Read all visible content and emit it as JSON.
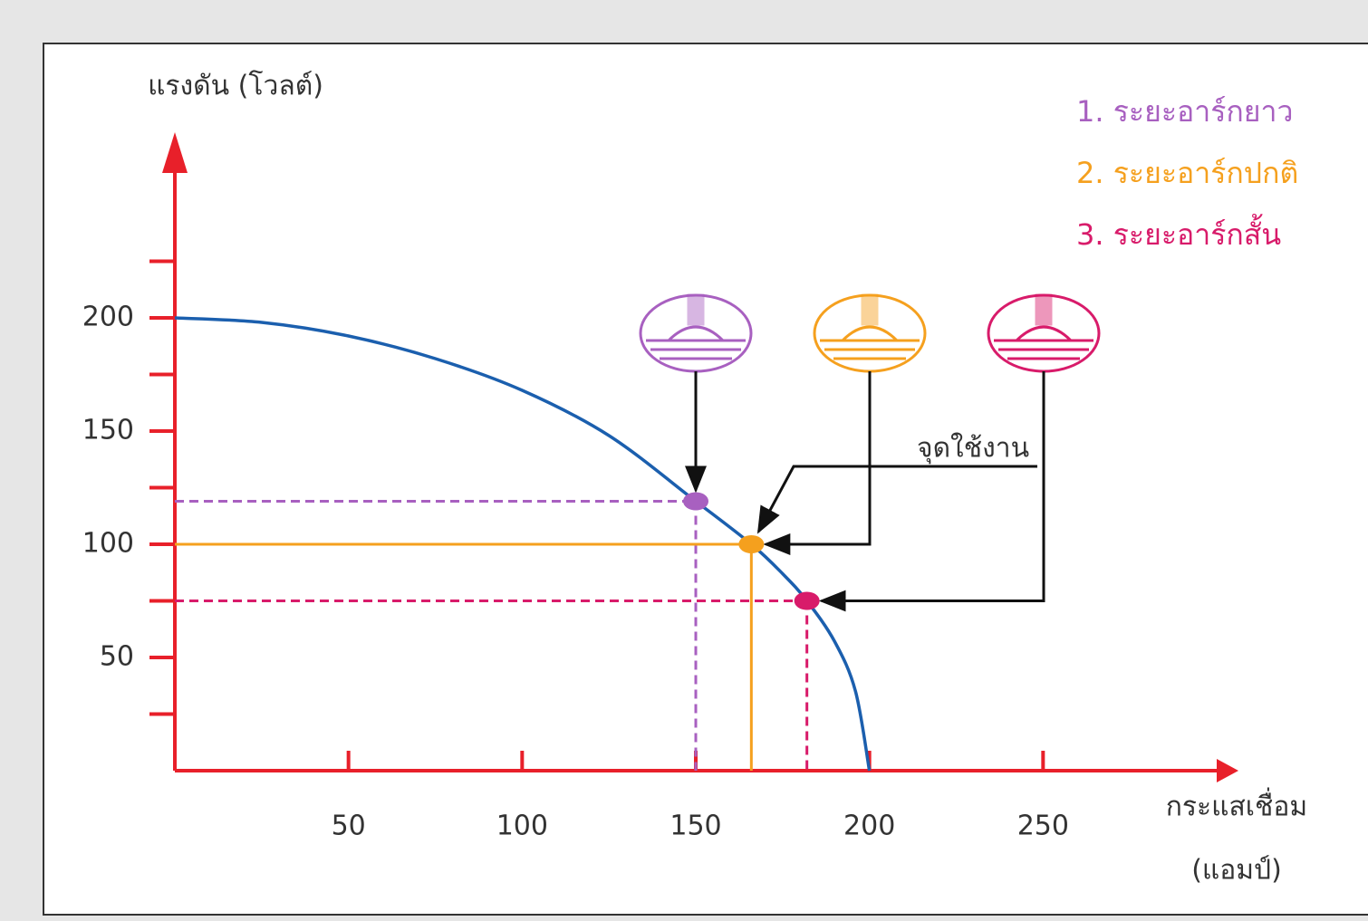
{
  "chart_data": {
    "type": "line",
    "y_label": "แรงดัน (โวลต์)",
    "x_label": "กระแสเชื่อม",
    "x_unit": "(แอมป์)",
    "annotation": "จุดใช้งาน",
    "color": "#1b5fae",
    "x": [
      0,
      25,
      50,
      75,
      100,
      125,
      150,
      166,
      175,
      182,
      190,
      196,
      200
    ],
    "values": [
      200,
      198,
      192,
      182,
      168,
      148,
      119,
      100,
      87,
      75,
      57,
      35,
      0
    ],
    "xlim": [
      0,
      300
    ],
    "ylim": [
      0,
      280
    ],
    "xticks": [
      50,
      100,
      150,
      200,
      250
    ],
    "yticks": [
      50,
      100,
      150,
      200
    ],
    "yticks_minor": [
      25,
      75,
      125,
      175,
      225
    ],
    "axis_color": "#e8202a",
    "points": [
      {
        "name": "1. ระยะอาร์กยาว",
        "color": "#a860c0",
        "x": 150,
        "y": 119,
        "linestyle": "dashed"
      },
      {
        "name": "2. ระยะอาร์กปกติ",
        "color": "#f5a01e",
        "x": 166,
        "y": 100,
        "linestyle": "solid"
      },
      {
        "name": "3. ระยะอาร์กสั้น",
        "color": "#d81b6a",
        "x": 182,
        "y": 75,
        "linestyle": "dashed"
      }
    ]
  }
}
